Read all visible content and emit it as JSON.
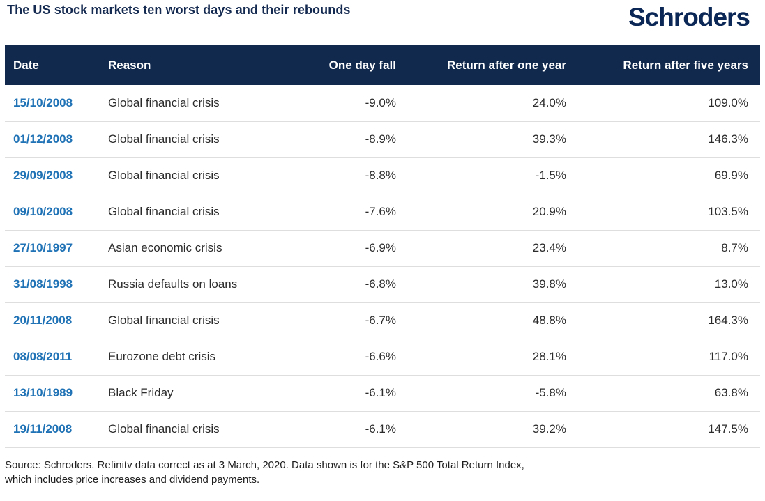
{
  "header": {
    "title": "The US stock markets ten worst days and their rebounds",
    "logo_text": "Schroders"
  },
  "chart_data": {
    "type": "table",
    "title": "The US stock markets ten worst days and their rebounds",
    "columns": [
      "Date",
      "Reason",
      "One day fall",
      "Return after one year",
      "Return after five years"
    ],
    "rows": [
      [
        "15/10/2008",
        "Global financial crisis",
        "-9.0%",
        "24.0%",
        "109.0%"
      ],
      [
        "01/12/2008",
        "Global financial crisis",
        "-8.9%",
        "39.3%",
        "146.3%"
      ],
      [
        "29/09/2008",
        "Global financial crisis",
        "-8.8%",
        "-1.5%",
        "69.9%"
      ],
      [
        "09/10/2008",
        "Global financial crisis",
        "-7.6%",
        "20.9%",
        "103.5%"
      ],
      [
        "27/10/1997",
        "Asian economic crisis",
        "-6.9%",
        "23.4%",
        "8.7%"
      ],
      [
        "31/08/1998",
        "Russia defaults on loans",
        "-6.8%",
        "39.8%",
        "13.0%"
      ],
      [
        "20/11/2008",
        "Global financial crisis",
        "-6.7%",
        "48.8%",
        "164.3%"
      ],
      [
        "08/08/2011",
        "Eurozone debt crisis",
        "-6.6%",
        "28.1%",
        "117.0%"
      ],
      [
        "13/10/1989",
        "Black Friday",
        "-6.1%",
        "-5.8%",
        "63.8%"
      ],
      [
        "19/11/2008",
        "Global financial crisis",
        "-6.1%",
        "39.2%",
        "147.5%"
      ]
    ]
  },
  "footer": {
    "source_line1": "Source: Schroders. Refinitv data correct as at 3 March, 2020. Data shown is for the S&P 500 Total Return Index,",
    "source_line2": "which includes price increases and dividend payments."
  },
  "colors": {
    "header_navy": "#12294e",
    "title_navy": "#152a50",
    "logo_navy": "#0a2756",
    "date_blue": "#1f72b5",
    "body_text": "#2b2b2b",
    "divider": "#dedede"
  }
}
